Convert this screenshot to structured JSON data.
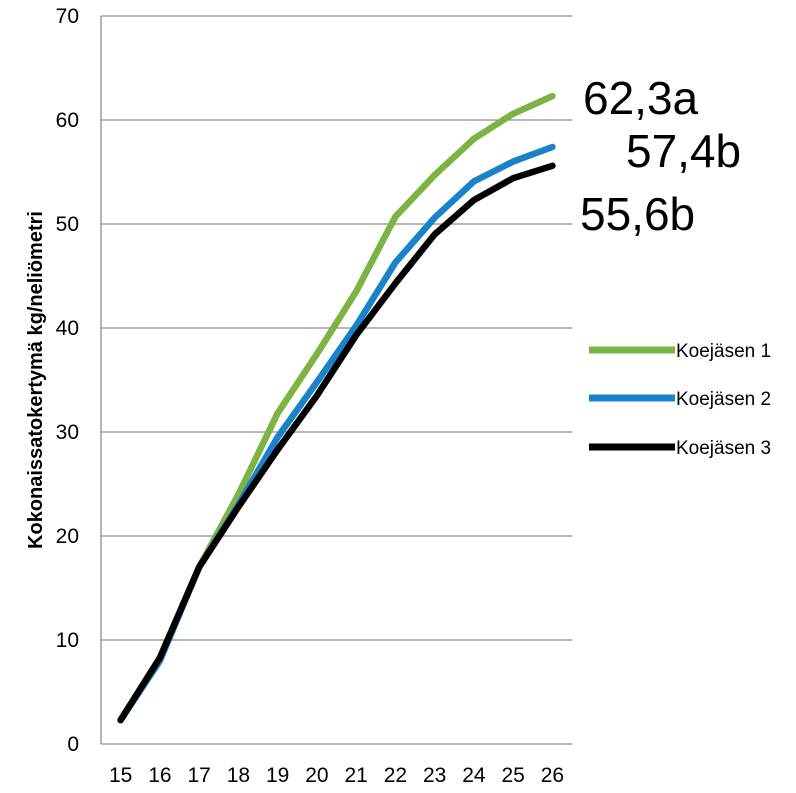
{
  "chart_data": {
    "type": "line",
    "ylabel": "Kokonaissatokertymä kg/neliömetri",
    "xlabel": "",
    "x": [
      "15",
      "16",
      "17",
      "18",
      "19",
      "20",
      "21",
      "22",
      "23",
      "24",
      "25",
      "26"
    ],
    "ylim": [
      0,
      70
    ],
    "yticks": [
      "0",
      "10",
      "20",
      "30",
      "40",
      "50",
      "60",
      "70"
    ],
    "grid": true,
    "legend_position": "right",
    "series": [
      {
        "name": "Koejäsen 1",
        "color": "#7cb342",
        "values": [
          2.3,
          8.3,
          17.0,
          24.0,
          31.8,
          37.5,
          43.5,
          50.7,
          54.7,
          58.2,
          60.6,
          62.3
        ]
      },
      {
        "name": "Koejäsen 2",
        "color": "#1a82c8",
        "values": [
          2.3,
          8.0,
          17.0,
          23.0,
          29.5,
          34.8,
          40.2,
          46.3,
          50.6,
          54.1,
          56.0,
          57.4
        ]
      },
      {
        "name": "Koejäsen 3",
        "color": "#000000",
        "values": [
          2.3,
          8.3,
          17.0,
          22.8,
          28.3,
          33.5,
          39.3,
          44.3,
          49.0,
          52.3,
          54.4,
          55.6
        ]
      }
    ],
    "end_labels": [
      "62,3a",
      "57,4b",
      "55,6b"
    ]
  }
}
